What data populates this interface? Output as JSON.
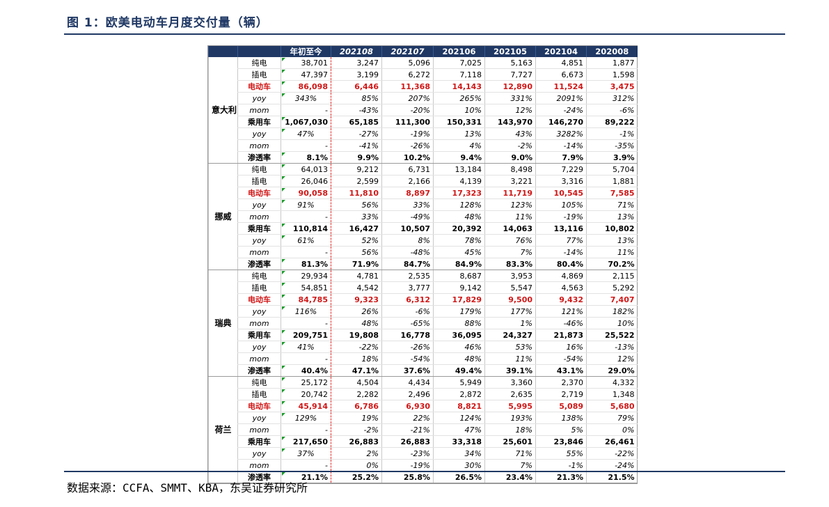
{
  "title": "图 1：欧美电动车月度交付量（辆）",
  "source": "数据来源：CCFA、SMMT、KBA，东吴证券研究所",
  "colors": {
    "header_bg": "#1f3864",
    "ev_red": "#d01717",
    "marker_green": "#1a9a2a",
    "divider_red": "#e0302e"
  },
  "table": {
    "columns": [
      "年初至今",
      "202108",
      "202107",
      "202106",
      "202105",
      "202104",
      "202008"
    ],
    "countries": [
      {
        "name": "意大利",
        "rows": [
          {
            "label": "纯电",
            "type": "bev",
            "values": [
              "38,701",
              "3,247",
              "5,096",
              "7,025",
              "5,163",
              "4,851",
              "1,877"
            ]
          },
          {
            "label": "插电",
            "type": "phev",
            "values": [
              "47,397",
              "3,199",
              "6,272",
              "7,118",
              "7,727",
              "6,673",
              "1,598"
            ]
          },
          {
            "label": "电动车",
            "type": "ev",
            "values": [
              "86,098",
              "6,446",
              "11,368",
              "14,143",
              "12,890",
              "11,524",
              "3,475"
            ]
          },
          {
            "label": "yoy",
            "type": "yoy",
            "values": [
              "343%",
              "85%",
              "207%",
              "265%",
              "331%",
              "2091%",
              "312%"
            ]
          },
          {
            "label": "mom",
            "type": "mom",
            "values": [
              "-",
              "-43%",
              "-20%",
              "10%",
              "12%",
              "-24%",
              "-6%"
            ]
          },
          {
            "label": "乘用车",
            "type": "pc",
            "values": [
              "1,067,030",
              "65,185",
              "111,300",
              "150,331",
              "143,970",
              "146,270",
              "89,222"
            ]
          },
          {
            "label": "yoy",
            "type": "yoy",
            "values": [
              "47%",
              "-27%",
              "-19%",
              "13%",
              "43%",
              "3282%",
              "-1%"
            ]
          },
          {
            "label": "mom",
            "type": "mom",
            "values": [
              "-",
              "-41%",
              "-26%",
              "4%",
              "-2%",
              "-14%",
              "-35%"
            ]
          },
          {
            "label": "渗透率",
            "type": "pen",
            "values": [
              "8.1%",
              "9.9%",
              "10.2%",
              "9.4%",
              "9.0%",
              "7.9%",
              "3.9%"
            ]
          }
        ]
      },
      {
        "name": "挪威",
        "rows": [
          {
            "label": "纯电",
            "type": "bev",
            "values": [
              "64,013",
              "9,212",
              "6,731",
              "13,184",
              "8,498",
              "7,229",
              "5,704"
            ]
          },
          {
            "label": "插电",
            "type": "phev",
            "values": [
              "26,046",
              "2,599",
              "2,166",
              "4,139",
              "3,221",
              "3,316",
              "1,881"
            ]
          },
          {
            "label": "电动车",
            "type": "ev",
            "values": [
              "90,058",
              "11,810",
              "8,897",
              "17,323",
              "11,719",
              "10,545",
              "7,585"
            ]
          },
          {
            "label": "yoy",
            "type": "yoy",
            "values": [
              "91%",
              "56%",
              "33%",
              "128%",
              "123%",
              "105%",
              "71%"
            ]
          },
          {
            "label": "mom",
            "type": "mom",
            "values": [
              "-",
              "33%",
              "-49%",
              "48%",
              "11%",
              "-19%",
              "13%"
            ]
          },
          {
            "label": "乘用车",
            "type": "pc",
            "values": [
              "110,814",
              "16,427",
              "10,507",
              "20,392",
              "14,063",
              "13,116",
              "10,802"
            ]
          },
          {
            "label": "yoy",
            "type": "yoy",
            "values": [
              "61%",
              "52%",
              "8%",
              "78%",
              "76%",
              "77%",
              "13%"
            ]
          },
          {
            "label": "mom",
            "type": "mom",
            "values": [
              "-",
              "56%",
              "-48%",
              "45%",
              "7%",
              "-14%",
              "11%"
            ]
          },
          {
            "label": "渗透率",
            "type": "pen",
            "values": [
              "81.3%",
              "71.9%",
              "84.7%",
              "84.9%",
              "83.3%",
              "80.4%",
              "70.2%"
            ]
          }
        ]
      },
      {
        "name": "瑞典",
        "rows": [
          {
            "label": "纯电",
            "type": "bev",
            "values": [
              "29,934",
              "4,781",
              "2,535",
              "8,687",
              "3,953",
              "4,869",
              "2,115"
            ]
          },
          {
            "label": "插电",
            "type": "phev",
            "values": [
              "54,851",
              "4,542",
              "3,777",
              "9,142",
              "5,547",
              "4,563",
              "5,292"
            ]
          },
          {
            "label": "电动车",
            "type": "ev",
            "values": [
              "84,785",
              "9,323",
              "6,312",
              "17,829",
              "9,500",
              "9,432",
              "7,407"
            ]
          },
          {
            "label": "yoy",
            "type": "yoy",
            "values": [
              "116%",
              "26%",
              "-6%",
              "179%",
              "177%",
              "121%",
              "182%"
            ]
          },
          {
            "label": "mom",
            "type": "mom",
            "values": [
              "-",
              "48%",
              "-65%",
              "88%",
              "1%",
              "-46%",
              "10%"
            ]
          },
          {
            "label": "乘用车",
            "type": "pc",
            "values": [
              "209,751",
              "19,808",
              "16,778",
              "36,095",
              "24,327",
              "21,873",
              "25,522"
            ]
          },
          {
            "label": "yoy",
            "type": "yoy",
            "values": [
              "41%",
              "-22%",
              "-26%",
              "46%",
              "53%",
              "16%",
              "-13%"
            ]
          },
          {
            "label": "mom",
            "type": "mom",
            "values": [
              "-",
              "18%",
              "-54%",
              "48%",
              "11%",
              "-54%",
              "12%"
            ]
          },
          {
            "label": "渗透率",
            "type": "pen",
            "values": [
              "40.4%",
              "47.1%",
              "37.6%",
              "49.4%",
              "39.1%",
              "43.1%",
              "29.0%"
            ]
          }
        ]
      },
      {
        "name": "荷兰",
        "rows": [
          {
            "label": "纯电",
            "type": "bev",
            "values": [
              "25,172",
              "4,504",
              "4,434",
              "5,949",
              "3,360",
              "2,370",
              "4,332"
            ]
          },
          {
            "label": "插电",
            "type": "phev",
            "values": [
              "20,742",
              "2,282",
              "2,496",
              "2,872",
              "2,635",
              "2,719",
              "1,348"
            ]
          },
          {
            "label": "电动车",
            "type": "ev",
            "values": [
              "45,914",
              "6,786",
              "6,930",
              "8,821",
              "5,995",
              "5,089",
              "5,680"
            ]
          },
          {
            "label": "yoy",
            "type": "yoy",
            "values": [
              "129%",
              "19%",
              "22%",
              "124%",
              "193%",
              "138%",
              "79%"
            ]
          },
          {
            "label": "mom",
            "type": "mom",
            "values": [
              "-",
              "-2%",
              "-21%",
              "47%",
              "18%",
              "5%",
              "0%"
            ]
          },
          {
            "label": "乘用车",
            "type": "pc",
            "values": [
              "217,650",
              "26,883",
              "26,883",
              "33,318",
              "25,601",
              "23,846",
              "26,461"
            ]
          },
          {
            "label": "yoy",
            "type": "yoy",
            "values": [
              "37%",
              "2%",
              "-23%",
              "34%",
              "71%",
              "55%",
              "-22%"
            ]
          },
          {
            "label": "mom",
            "type": "mom",
            "values": [
              "-",
              "0%",
              "-19%",
              "30%",
              "7%",
              "-1%",
              "-24%"
            ]
          },
          {
            "label": "渗透率",
            "type": "pen",
            "values": [
              "21.1%",
              "25.2%",
              "25.8%",
              "26.5%",
              "23.4%",
              "21.3%",
              "21.5%"
            ]
          }
        ]
      }
    ]
  }
}
